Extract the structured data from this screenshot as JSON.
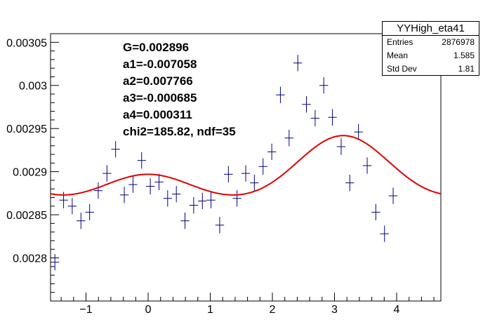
{
  "chart_data": {
    "type": "scatter",
    "title": "",
    "xlabel": "",
    "ylabel": "",
    "xlim": [
      -1.571,
      4.712
    ],
    "ylim": [
      0.00275,
      0.00306
    ],
    "x_ticks": [
      -1,
      0,
      1,
      2,
      3,
      4
    ],
    "x_tick_labels": [
      "−1",
      "0",
      "1",
      "2",
      "3",
      "4"
    ],
    "y_ticks": [
      0.0028,
      0.00285,
      0.0029,
      0.00295,
      0.003,
      0.00305
    ],
    "y_tick_labels": [
      "0.0028",
      "0.00285",
      "0.0029",
      "0.00295",
      "0.003",
      "0.00305"
    ],
    "grid": false,
    "series": [
      {
        "kind": "points-with-errors",
        "color": "#000080",
        "x_half_width": 0.0698,
        "points": [
          {
            "x": -1.501,
            "y": 0.002795,
            "err": 9.5e-06
          },
          {
            "x": -1.361,
            "y": 0.002867,
            "err": 9.5e-06
          },
          {
            "x": -1.222,
            "y": 0.00286,
            "err": 9.5e-06
          },
          {
            "x": -1.082,
            "y": 0.002843,
            "err": 9.5e-06
          },
          {
            "x": -0.942,
            "y": 0.002853,
            "err": 9.5e-06
          },
          {
            "x": -0.803,
            "y": 0.002878,
            "err": 9.5e-06
          },
          {
            "x": -0.663,
            "y": 0.002898,
            "err": 9.5e-06
          },
          {
            "x": -0.524,
            "y": 0.002926,
            "err": 9.5e-06
          },
          {
            "x": -0.384,
            "y": 0.002873,
            "err": 9.5e-06
          },
          {
            "x": -0.244,
            "y": 0.002885,
            "err": 9.5e-06
          },
          {
            "x": -0.105,
            "y": 0.002913,
            "err": 9.5e-06
          },
          {
            "x": 0.035,
            "y": 0.002883,
            "err": 9.5e-06
          },
          {
            "x": 0.175,
            "y": 0.002888,
            "err": 9.5e-06
          },
          {
            "x": 0.314,
            "y": 0.002869,
            "err": 9.5e-06
          },
          {
            "x": 0.454,
            "y": 0.002874,
            "err": 9.5e-06
          },
          {
            "x": 0.593,
            "y": 0.002843,
            "err": 9.5e-06
          },
          {
            "x": 0.733,
            "y": 0.002861,
            "err": 9.5e-06
          },
          {
            "x": 0.873,
            "y": 0.002866,
            "err": 9.5e-06
          },
          {
            "x": 1.012,
            "y": 0.002867,
            "err": 9.5e-06
          },
          {
            "x": 1.152,
            "y": 0.002838,
            "err": 9.5e-06
          },
          {
            "x": 1.292,
            "y": 0.002897,
            "err": 9.5e-06
          },
          {
            "x": 1.431,
            "y": 0.002869,
            "err": 9.5e-06
          },
          {
            "x": 1.571,
            "y": 0.002898,
            "err": 9.5e-06
          },
          {
            "x": 1.71,
            "y": 0.002887,
            "err": 9.5e-06
          },
          {
            "x": 1.85,
            "y": 0.002906,
            "err": 9.5e-06
          },
          {
            "x": 1.99,
            "y": 0.002923,
            "err": 9.5e-06
          },
          {
            "x": 2.129,
            "y": 0.002989,
            "err": 9.5e-06
          },
          {
            "x": 2.269,
            "y": 0.002939,
            "err": 9.5e-06
          },
          {
            "x": 2.409,
            "y": 0.003026,
            "err": 9.5e-06
          },
          {
            "x": 2.548,
            "y": 0.002978,
            "err": 9.5e-06
          },
          {
            "x": 2.688,
            "y": 0.002962,
            "err": 9.5e-06
          },
          {
            "x": 2.827,
            "y": 0.003,
            "err": 9.5e-06
          },
          {
            "x": 2.967,
            "y": 0.002963,
            "err": 9.5e-06
          },
          {
            "x": 3.107,
            "y": 0.002929,
            "err": 9.5e-06
          },
          {
            "x": 3.246,
            "y": 0.002887,
            "err": 9.5e-06
          },
          {
            "x": 3.386,
            "y": 0.002946,
            "err": 9.5e-06
          },
          {
            "x": 3.526,
            "y": 0.002907,
            "err": 9.5e-06
          },
          {
            "x": 3.665,
            "y": 0.002853,
            "err": 9.5e-06
          },
          {
            "x": 3.805,
            "y": 0.002828,
            "err": 9.5e-06
          },
          {
            "x": 3.944,
            "y": 0.002872,
            "err": 9.5e-06
          }
        ]
      },
      {
        "kind": "fit-curve",
        "color": "#e00000",
        "G": 0.002896,
        "a1": -0.007058,
        "a2": 0.007766,
        "a3": -0.000685,
        "a4": 0.000311
      }
    ],
    "annotations": [
      "G=0.002896",
      "a1=-0.007058",
      "a2=0.007766",
      "a3=-0.000685",
      "a4=0.000311",
      "chi2=185.82, ndf=35"
    ],
    "stats_box": {
      "title": "YYHigh_eta41",
      "rows": [
        {
          "label": "Entries",
          "value": "2876978"
        },
        {
          "label": "Mean",
          "value": "1.585"
        },
        {
          "label": "Std Dev",
          "value": "1.81"
        }
      ]
    }
  }
}
